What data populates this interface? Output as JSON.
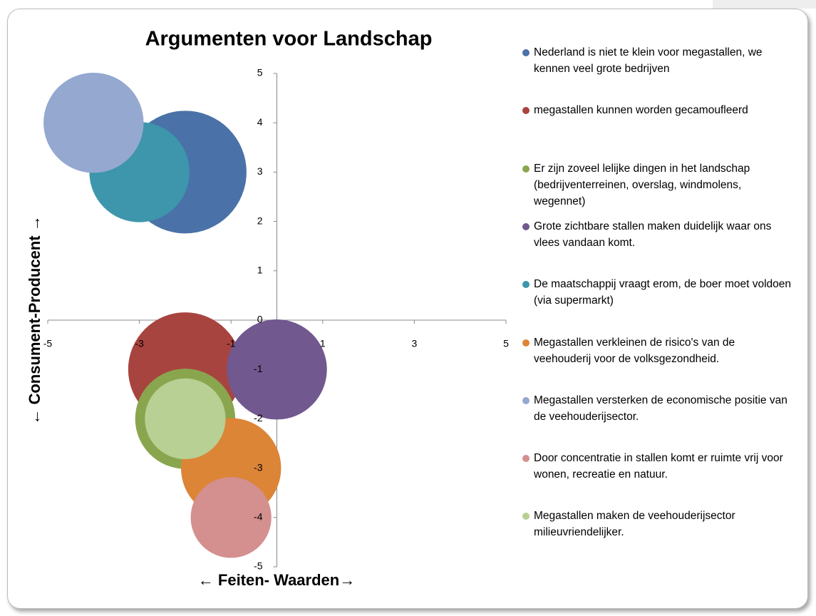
{
  "chart_data": {
    "type": "bubble",
    "title": "Argumenten voor Landschap",
    "x_label": "← Feiten- Waarden→",
    "y_label": "← Consument-Producent →",
    "xlim": [
      -5,
      5
    ],
    "xticks": [
      -5,
      -3,
      -1,
      1,
      3,
      5
    ],
    "ylim": [
      -5,
      5
    ],
    "yticks": [
      5,
      4,
      3,
      2,
      1,
      0,
      -1,
      -2,
      -3,
      -4,
      -5
    ],
    "grid": false,
    "legend": "right",
    "series": [
      {
        "name": "Nederland is niet te klein voor megastallen, we kennen veel grote bedrijven",
        "color": "#4a72a8",
        "x": [
          -2
        ],
        "values": [
          3
        ],
        "sizes": [
          3
        ]
      },
      {
        "name": "megastallen kunnen worden gecamoufleerd",
        "color": "#a84440",
        "x": [
          -2
        ],
        "values": [
          -1
        ],
        "sizes": [
          2.6
        ]
      },
      {
        "name": "Er zijn zoveel lelijke dingen in het landschap (bedrijventerreinen, overslag, windmolens, wegennet)",
        "color": "#89a64e",
        "x": [
          -2
        ],
        "values": [
          -2
        ],
        "sizes": [
          2
        ]
      },
      {
        "name": "Grote zichtbare stallen maken duidelijk waar ons vlees vandaan komt.",
        "color": "#71588f",
        "x": [
          0
        ],
        "values": [
          -1
        ],
        "sizes": [
          2
        ]
      },
      {
        "name": "De  maatschappij  vraagt erom, de boer moet voldoen (via supermarkt)",
        "color": "#3d96ab",
        "x": [
          -3
        ],
        "values": [
          3
        ],
        "sizes": [
          2
        ]
      },
      {
        "name": "Megastallen verkleinen de risico's van de veehouderij voor de volksgezondheid.",
        "color": "#dc8537",
        "x": [
          -1
        ],
        "values": [
          -3
        ],
        "sizes": [
          2
        ]
      },
      {
        "name": "Megastallen versterken de economische positie van de veehouderijsector.",
        "color": "#94a8d0",
        "x": [
          -4
        ],
        "values": [
          4
        ],
        "sizes": [
          2
        ]
      },
      {
        "name": "Door concentratie in stallen komt er ruimte vrij voor wonen, recreatie en natuur.",
        "color": "#d48f8f",
        "x": [
          -1
        ],
        "values": [
          -4
        ],
        "sizes": [
          1.3
        ]
      },
      {
        "name": "Megastallen maken de veehouderijsector milieuvriendelijker.",
        "color": "#b8d094",
        "x": [
          -2
        ],
        "values": [
          -2
        ],
        "sizes": [
          1.3
        ]
      }
    ]
  }
}
